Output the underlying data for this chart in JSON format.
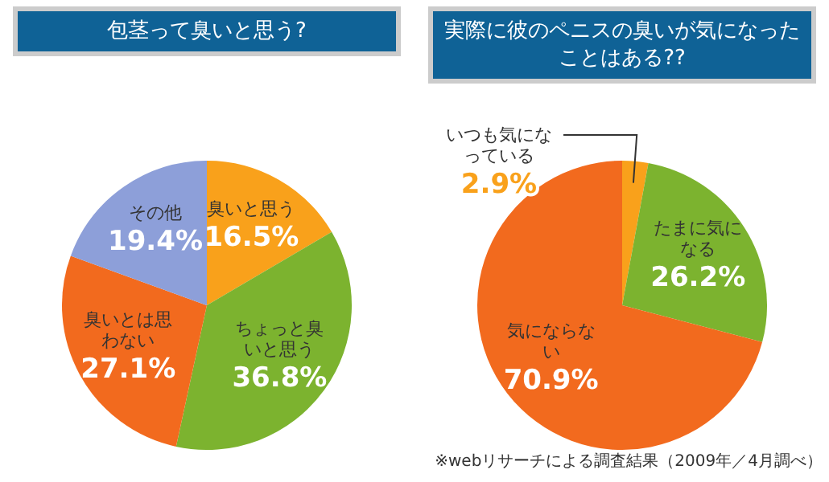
{
  "chart_data": [
    {
      "type": "pie",
      "title": "包茎って臭いと思う?",
      "categories": [
        "臭いと思う",
        "ちょっと臭いと思う",
        "臭いとは思わない",
        "その他"
      ],
      "values": [
        16.5,
        36.8,
        27.1,
        19.4
      ],
      "colors": [
        "#f9a11b",
        "#7cb32f",
        "#f26a1e",
        "#8d9fd9"
      ],
      "value_labels": [
        "16.5%",
        "36.8%",
        "27.1%",
        "19.4%"
      ],
      "legend": false
    },
    {
      "type": "pie",
      "title": "実際に彼のペニスの臭いが気になったことはある??",
      "categories": [
        "いつも気になっている",
        "たまに気になる",
        "気にならない"
      ],
      "values": [
        2.9,
        26.2,
        70.9
      ],
      "colors": [
        "#f9a11b",
        "#7cb32f",
        "#f26a1e"
      ],
      "value_labels": [
        "2.9%",
        "26.2%",
        "70.9%"
      ],
      "legend": false,
      "annotations": [
        "※webリサーチによる調査結果（2009年／4月調べ）"
      ]
    }
  ]
}
